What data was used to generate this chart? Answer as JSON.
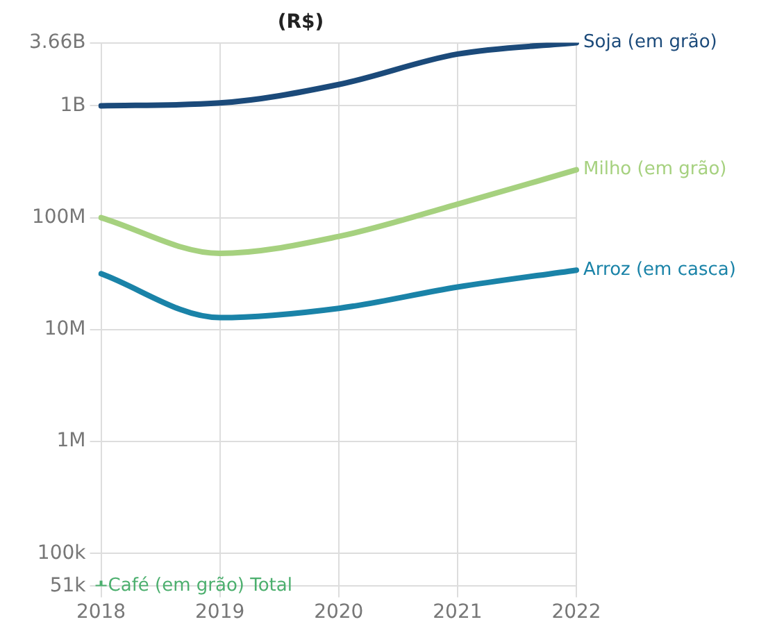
{
  "chart_data": {
    "type": "line",
    "title": "(R$)",
    "categories": [
      "2018",
      "2019",
      "2020",
      "2021",
      "2022"
    ],
    "series": [
      {
        "name": "Soja (em grão)",
        "color": "#1b4a7a",
        "values": [
          1000000000,
          1060000000,
          1550000000,
          2900000000,
          3660000000
        ]
      },
      {
        "name": "Milho (em grão)",
        "color": "#a6d17f",
        "values": [
          100000000,
          48000000,
          68000000,
          132000000,
          268000000
        ]
      },
      {
        "name": "Arroz (em casca)",
        "color": "#1a83a8",
        "values": [
          31600000,
          12800000,
          15500000,
          24000000,
          34000000
        ]
      },
      {
        "name": "Café (em grão) Total",
        "color": "#4caf6e",
        "marker": "cross",
        "values": [
          51000,
          null,
          null,
          null,
          null
        ]
      }
    ],
    "log": "y",
    "ylim": [
      51000,
      3660000000
    ],
    "yticks": [
      {
        "value": 51000,
        "label": "51k"
      },
      {
        "value": 100000,
        "label": "100k"
      },
      {
        "value": 1000000,
        "label": "1M"
      },
      {
        "value": 10000000,
        "label": "10M"
      },
      {
        "value": 100000000,
        "label": "100M"
      },
      {
        "value": 1000000000,
        "label": "1B"
      },
      {
        "value": 3660000000,
        "label": "3.66B"
      }
    ],
    "grid": true,
    "legend": false,
    "marker": "none",
    "line_style": "solid"
  }
}
